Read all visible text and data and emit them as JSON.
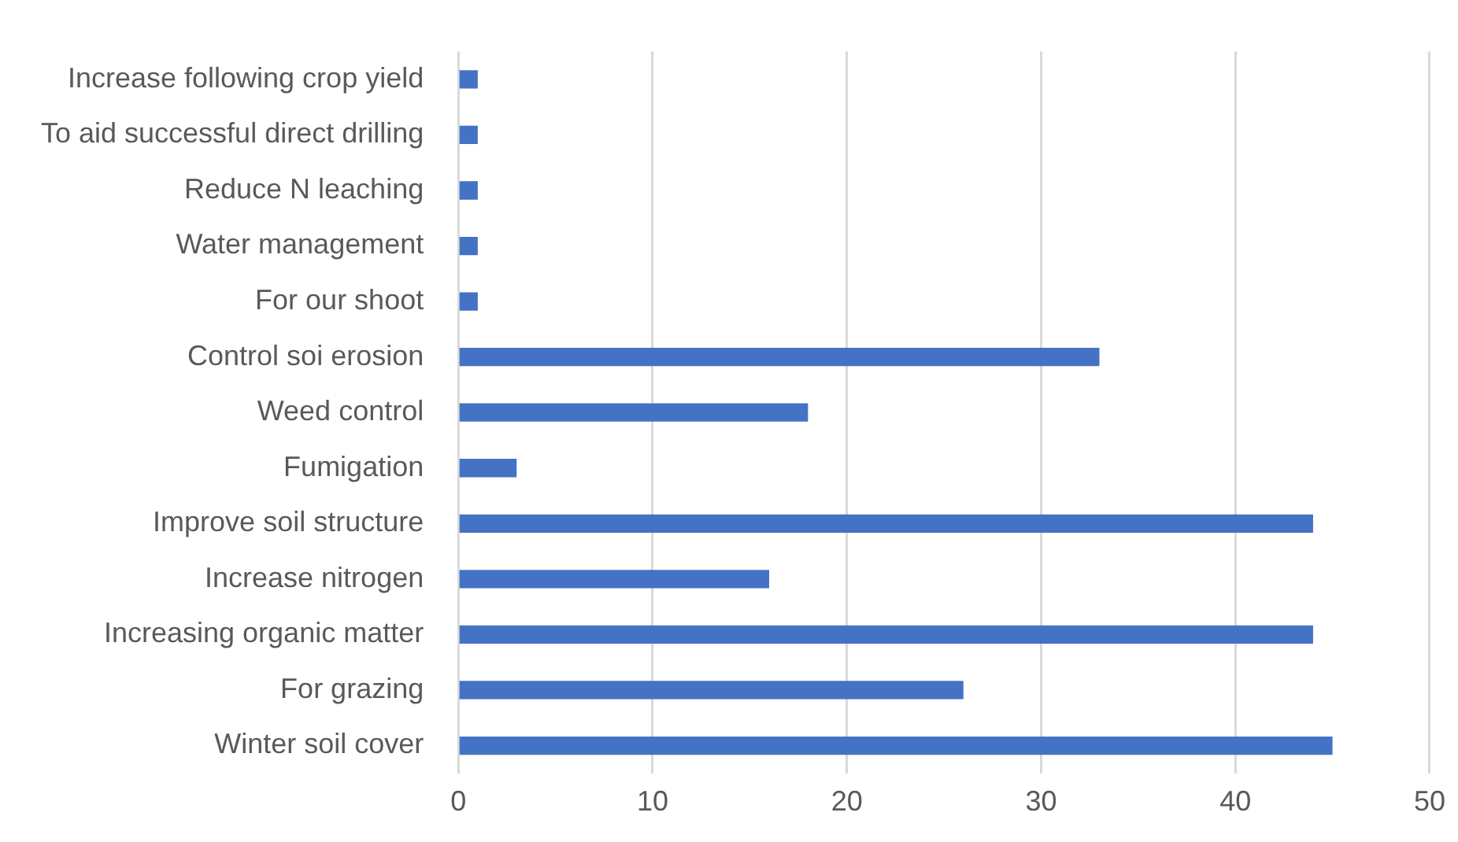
{
  "chart_data": {
    "type": "bar",
    "orientation": "horizontal",
    "categories": [
      "Increase following crop yield",
      "To aid successful direct drilling",
      "Reduce N leaching",
      "Water management",
      "For our shoot",
      "Control soi erosion",
      "Weed control",
      "Fumigation",
      "Improve soil structure",
      "Increase nitrogen",
      "Increasing organic matter",
      "For grazing",
      "Winter soil cover"
    ],
    "values": [
      1,
      1,
      1,
      1,
      1,
      33,
      18,
      3,
      44,
      16,
      44,
      26,
      45
    ],
    "color": "#4472c4",
    "xlim": [
      0,
      50
    ],
    "xticks": [
      0,
      10,
      20,
      30,
      40,
      50
    ],
    "grid": "x",
    "legend": false
  }
}
